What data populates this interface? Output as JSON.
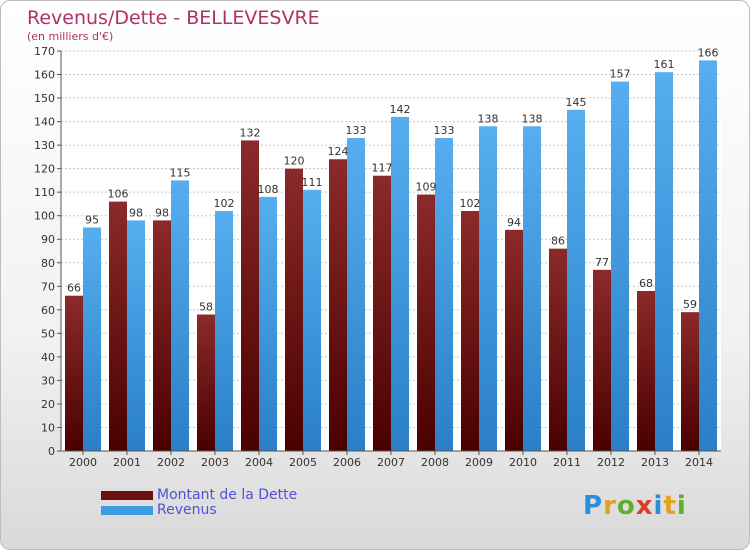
{
  "title": "Revenus/Dette - BELLEVESVRE",
  "subtitle": "(en milliers d'€)",
  "chart_data": {
    "type": "bar",
    "categories": [
      "2000",
      "2001",
      "2002",
      "2003",
      "2004",
      "2005",
      "2006",
      "2007",
      "2008",
      "2009",
      "2010",
      "2011",
      "2012",
      "2013",
      "2014"
    ],
    "series": [
      {
        "name": "Montant de la Dette",
        "color": "#7a1a1a",
        "values": [
          66,
          106,
          98,
          58,
          132,
          120,
          124,
          117,
          109,
          102,
          94,
          86,
          77,
          68,
          59
        ]
      },
      {
        "name": "Revenus",
        "color": "#3d9be0",
        "values": [
          95,
          98,
          115,
          102,
          108,
          111,
          133,
          142,
          133,
          138,
          138,
          145,
          157,
          161,
          166
        ]
      }
    ],
    "ylim": [
      0,
      170
    ],
    "yticks": [
      0,
      10,
      20,
      30,
      40,
      50,
      60,
      70,
      80,
      90,
      100,
      110,
      120,
      130,
      140,
      150,
      160,
      170
    ],
    "grid": true,
    "legend_position": "bottom-left"
  },
  "legend": [
    {
      "label": "Montant de la Dette",
      "color": "#6b1111"
    },
    {
      "label": "Revenus",
      "color": "#3d9be0"
    }
  ],
  "logo": {
    "p": "P",
    "r": "r",
    "o": "o",
    "x": "x",
    "i1": "i",
    "t": "t",
    "i2": "i"
  }
}
